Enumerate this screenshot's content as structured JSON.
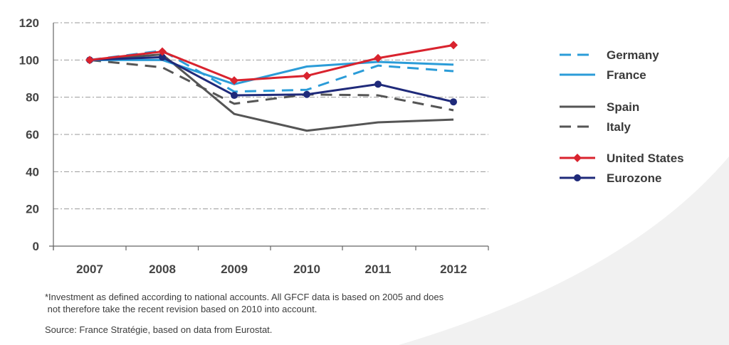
{
  "chart_data": {
    "type": "line",
    "title": "",
    "xlabel": "",
    "ylabel": "",
    "categories": [
      "2007",
      "2008",
      "2009",
      "2010",
      "2011",
      "2012"
    ],
    "ylim": [
      0,
      120
    ],
    "yticks": [
      0,
      20,
      40,
      60,
      80,
      100,
      120
    ],
    "grid": true,
    "legend_position": "right",
    "series": [
      {
        "name": "Germany",
        "values": [
          100,
          105,
          83,
          84,
          97,
          94
        ],
        "color": "#2b9cd8",
        "dash": "dashed",
        "marker": "none"
      },
      {
        "name": "France",
        "values": [
          100,
          100,
          87,
          96.5,
          99,
          97.5
        ],
        "color": "#2b9cd8",
        "dash": "solid",
        "marker": "none"
      },
      {
        "name": "Spain",
        "values": [
          100,
          103,
          71,
          62,
          66.5,
          68
        ],
        "color": "#555555",
        "dash": "solid",
        "marker": "none"
      },
      {
        "name": "Italy",
        "values": [
          100,
          96,
          76.5,
          81.5,
          81,
          73
        ],
        "color": "#555555",
        "dash": "dashed",
        "marker": "none"
      },
      {
        "name": "United States",
        "values": [
          100,
          104.5,
          89,
          91.5,
          101,
          108
        ],
        "color": "#d9232e",
        "dash": "solid",
        "marker": "diamond"
      },
      {
        "name": "Eurozone",
        "values": [
          100,
          101.5,
          81,
          81.5,
          87,
          77.5
        ],
        "color": "#1f2a7a",
        "dash": "solid",
        "marker": "circle"
      }
    ]
  },
  "notes": {
    "footnote_line1": "*Investment as defined according to national accounts. All GFCF data is based on 2005 and does",
    "footnote_line2": " not therefore take the recent revision based on 2010 into account.",
    "source": "Source: France Stratégie, based on data from Eurostat."
  }
}
